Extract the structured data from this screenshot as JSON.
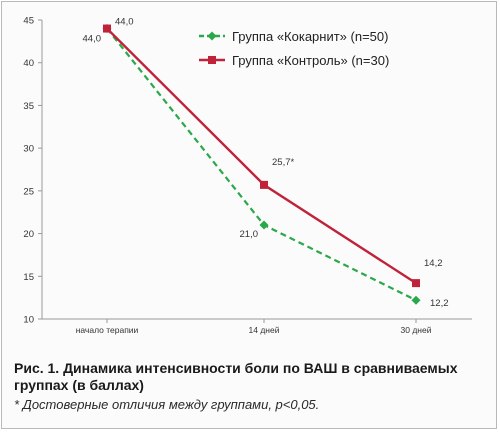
{
  "chart_data": {
    "type": "line",
    "categories": [
      "начало терапии",
      "14 дней",
      "30 дней"
    ],
    "series": [
      {
        "name": "Группа «Кокарнит» (n=50)",
        "values": [
          44.0,
          21.0,
          12.2
        ],
        "labels": [
          "44,0",
          "21,0",
          "12,2"
        ],
        "color": "#2aa84a",
        "style": "dashed",
        "marker": "diamond"
      },
      {
        "name": "Группа «Контроль» (n=30)",
        "values": [
          44.0,
          25.7,
          14.2
        ],
        "labels": [
          "44,0",
          "25,7*",
          "14,2"
        ],
        "color": "#c0223a",
        "style": "solid",
        "marker": "square"
      }
    ],
    "yticks": [
      "10",
      "15",
      "20",
      "25",
      "30",
      "35",
      "40",
      "45"
    ],
    "ylim": [
      10,
      45
    ],
    "grid": false,
    "legend": "top-right"
  },
  "caption": {
    "title": "Рис. 1. Динамика интенсивности боли по ВАШ в сравниваемых группах (в баллах)",
    "note": "* Достоверные отличия между группами, p<0,05."
  }
}
